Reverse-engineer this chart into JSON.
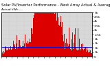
{
  "title": "Solar PV/Inverter Performance - West Array Actual & Average Power Output",
  "subtitle": "Actual kWh ---",
  "bg_color": "#ffffff",
  "plot_bg_color": "#d8d8d8",
  "bar_color": "#dd0000",
  "avg_line_color": "#0000cc",
  "avg_value": 0.22,
  "ylim": [
    0,
    1.0
  ],
  "ytick_labels": [
    "5Mk",
    "4Mk",
    "3.5k",
    "3k",
    "2.7k",
    "2k",
    "1.7k",
    "1k",
    "1k",
    "1k",
    "0"
  ],
  "n_points": 350,
  "title_fontsize": 3.8,
  "label_fontsize": 3.2,
  "grid_color": "#bbbbbb"
}
